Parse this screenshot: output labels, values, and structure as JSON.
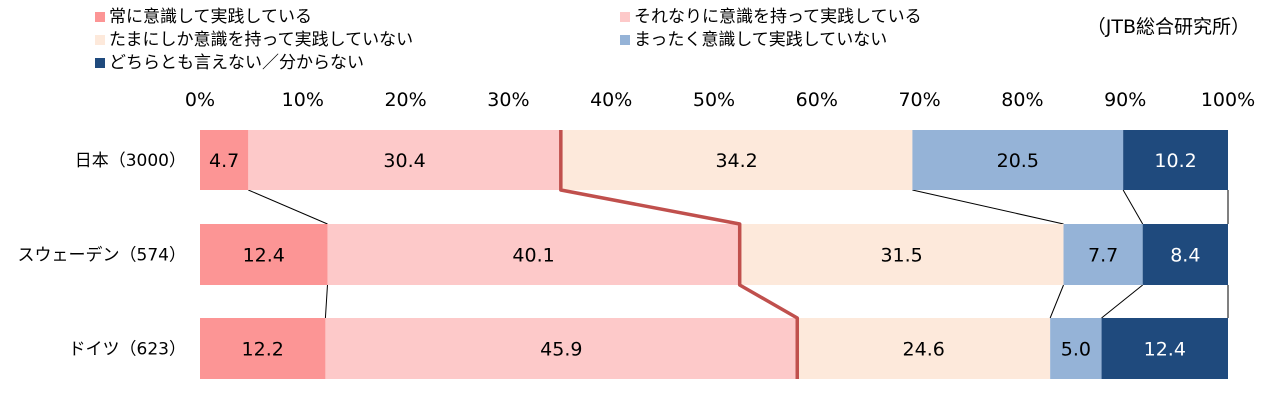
{
  "source_note": "（JTB総合研究所）",
  "chart_data": {
    "type": "bar",
    "orientation": "horizontal",
    "stacked": "percent",
    "xlim": [
      0,
      100
    ],
    "x_ticks": [
      "0%",
      "10%",
      "20%",
      "30%",
      "40%",
      "50%",
      "60%",
      "70%",
      "80%",
      "90%",
      "100%"
    ],
    "categories": [
      "日本（3000）",
      "スウェーデン（574）",
      "ドイツ（623）"
    ],
    "series": [
      {
        "name": "常に意識して実践している",
        "color": "#fc9595",
        "text_color": "#000000",
        "values": [
          4.7,
          12.4,
          12.2
        ]
      },
      {
        "name": "それなりに意識を持って実践している",
        "color": "#fdc9c9",
        "text_color": "#000000",
        "values": [
          30.4,
          40.1,
          45.9
        ]
      },
      {
        "name": "たまにしか意識を持って実践していない",
        "color": "#fde9db",
        "text_color": "#000000",
        "values": [
          34.2,
          31.5,
          24.6
        ]
      },
      {
        "name": "まったく意識して実践していない",
        "color": "#95b3d7",
        "text_color": "#000000",
        "values": [
          20.5,
          7.7,
          5.0
        ]
      },
      {
        "name": "どちらとも言えない／分からない",
        "color": "#1f4a7d",
        "text_color": "#ffffff",
        "values": [
          10.2,
          8.4,
          12.4
        ]
      }
    ],
    "legend_position": "top",
    "grid": false,
    "highlight_boundary_after_series": 1,
    "highlight_color": "#c0504d"
  }
}
